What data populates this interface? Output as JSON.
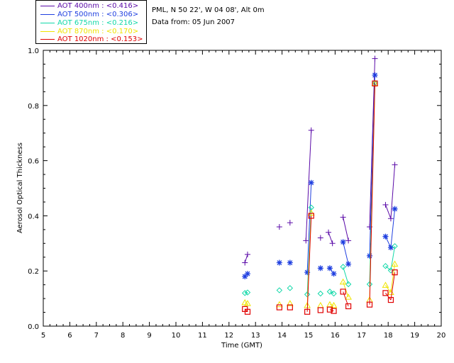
{
  "header": {
    "location": "PML, N 50 22', W 04 08', Alt 0m",
    "data_from": "Data from: 05 Jun 2007"
  },
  "legend": [
    {
      "label": "AOT  400nm : <0.416>",
      "color": "#5a0aa8"
    },
    {
      "label": "AOT  500nm : <0.306>",
      "color": "#1f3fe0"
    },
    {
      "label": "AOT  675nm : <0.216>",
      "color": "#10d8a8"
    },
    {
      "label": "AOT  870nm : <0.170>",
      "color": "#f0e400"
    },
    {
      "label": "AOT 1020nm : <0.153>",
      "color": "#e00000"
    }
  ],
  "chart_data": {
    "type": "line",
    "xlabel": "Time (GMT)",
    "ylabel": "Aerosol Optical Thickness",
    "xlim": [
      5,
      20
    ],
    "ylim": [
      0.0,
      1.0
    ],
    "xticks": [
      "5",
      "6",
      "7",
      "8",
      "9",
      "10",
      "11",
      "12",
      "13",
      "14",
      "15",
      "16",
      "17",
      "18",
      "19",
      "20"
    ],
    "yticks": [
      "0.0",
      "0.2",
      "0.4",
      "0.6",
      "0.8",
      "1.0"
    ],
    "grid": false,
    "series": [
      {
        "name": "AOT 400nm",
        "marker": "plus",
        "color": "#5a0aa8",
        "points": [
          [
            12.6,
            0.23
          ],
          [
            12.7,
            0.26
          ],
          [
            13.9,
            0.36
          ],
          [
            14.3,
            0.375
          ],
          [
            14.9,
            0.31
          ],
          [
            15.1,
            0.71
          ],
          [
            15.45,
            0.32
          ],
          [
            15.75,
            0.34
          ],
          [
            15.9,
            0.3
          ],
          [
            16.3,
            0.395
          ],
          [
            16.5,
            0.31
          ],
          [
            17.3,
            0.36
          ],
          [
            17.5,
            0.97
          ],
          [
            17.9,
            0.44
          ],
          [
            18.1,
            0.39
          ],
          [
            18.25,
            0.585
          ]
        ],
        "segments": [
          [
            0,
            1
          ],
          [
            4,
            5
          ],
          [
            7,
            8
          ],
          [
            9,
            10
          ],
          [
            11,
            12
          ],
          [
            13,
            14
          ],
          [
            14,
            15
          ]
        ]
      },
      {
        "name": "AOT 500nm",
        "marker": "star",
        "color": "#1f3fe0",
        "points": [
          [
            12.6,
            0.18
          ],
          [
            12.7,
            0.19
          ],
          [
            13.9,
            0.23
          ],
          [
            14.3,
            0.23
          ],
          [
            14.95,
            0.195
          ],
          [
            15.1,
            0.52
          ],
          [
            15.45,
            0.21
          ],
          [
            15.8,
            0.21
          ],
          [
            15.95,
            0.19
          ],
          [
            16.3,
            0.305
          ],
          [
            16.5,
            0.225
          ],
          [
            17.3,
            0.255
          ],
          [
            17.5,
            0.91
          ],
          [
            17.9,
            0.325
          ],
          [
            18.1,
            0.285
          ],
          [
            18.25,
            0.425
          ]
        ],
        "segments": [
          [
            0,
            1
          ],
          [
            4,
            5
          ],
          [
            7,
            8
          ],
          [
            9,
            10
          ],
          [
            11,
            12
          ],
          [
            13,
            14
          ],
          [
            14,
            15
          ]
        ]
      },
      {
        "name": "AOT 675nm",
        "marker": "diamond",
        "color": "#10d8a8",
        "points": [
          [
            12.6,
            0.12
          ],
          [
            12.7,
            0.122
          ],
          [
            13.9,
            0.13
          ],
          [
            14.3,
            0.138
          ],
          [
            14.95,
            0.115
          ],
          [
            15.1,
            0.43
          ],
          [
            15.45,
            0.118
          ],
          [
            15.8,
            0.125
          ],
          [
            15.95,
            0.118
          ],
          [
            16.3,
            0.215
          ],
          [
            16.5,
            0.152
          ],
          [
            17.3,
            0.152
          ],
          [
            17.5,
            0.882
          ],
          [
            17.9,
            0.218
          ],
          [
            18.1,
            0.202
          ],
          [
            18.25,
            0.29
          ]
        ],
        "segments": [
          [
            0,
            1
          ],
          [
            4,
            5
          ],
          [
            7,
            8
          ],
          [
            9,
            10
          ],
          [
            11,
            12
          ],
          [
            13,
            14
          ],
          [
            14,
            15
          ]
        ]
      },
      {
        "name": "AOT 870nm",
        "marker": "triangle",
        "color": "#f0e400",
        "points": [
          [
            12.6,
            0.085
          ],
          [
            12.7,
            0.082
          ],
          [
            13.9,
            0.078
          ],
          [
            14.3,
            0.082
          ],
          [
            14.95,
            0.075
          ],
          [
            15.1,
            0.41
          ],
          [
            15.45,
            0.075
          ],
          [
            15.8,
            0.078
          ],
          [
            15.95,
            0.075
          ],
          [
            16.3,
            0.16
          ],
          [
            16.5,
            0.105
          ],
          [
            17.3,
            0.095
          ],
          [
            17.5,
            0.88
          ],
          [
            17.9,
            0.148
          ],
          [
            18.1,
            0.122
          ],
          [
            18.25,
            0.225
          ]
        ],
        "segments": [
          [
            0,
            1
          ],
          [
            4,
            5
          ],
          [
            7,
            8
          ],
          [
            9,
            10
          ],
          [
            11,
            12
          ],
          [
            13,
            14
          ],
          [
            14,
            15
          ]
        ]
      },
      {
        "name": "AOT 1020nm",
        "marker": "square",
        "color": "#e00000",
        "points": [
          [
            12.6,
            0.062
          ],
          [
            12.7,
            0.052
          ],
          [
            13.9,
            0.068
          ],
          [
            14.3,
            0.068
          ],
          [
            14.95,
            0.052
          ],
          [
            15.1,
            0.4
          ],
          [
            15.45,
            0.058
          ],
          [
            15.8,
            0.06
          ],
          [
            15.95,
            0.055
          ],
          [
            16.3,
            0.125
          ],
          [
            16.5,
            0.072
          ],
          [
            17.3,
            0.078
          ],
          [
            17.5,
            0.88
          ],
          [
            17.9,
            0.12
          ],
          [
            18.1,
            0.095
          ],
          [
            18.25,
            0.195
          ]
        ],
        "segments": [
          [
            0,
            1
          ],
          [
            4,
            5
          ],
          [
            7,
            8
          ],
          [
            9,
            10
          ],
          [
            11,
            12
          ],
          [
            13,
            14
          ],
          [
            14,
            15
          ]
        ]
      }
    ]
  }
}
